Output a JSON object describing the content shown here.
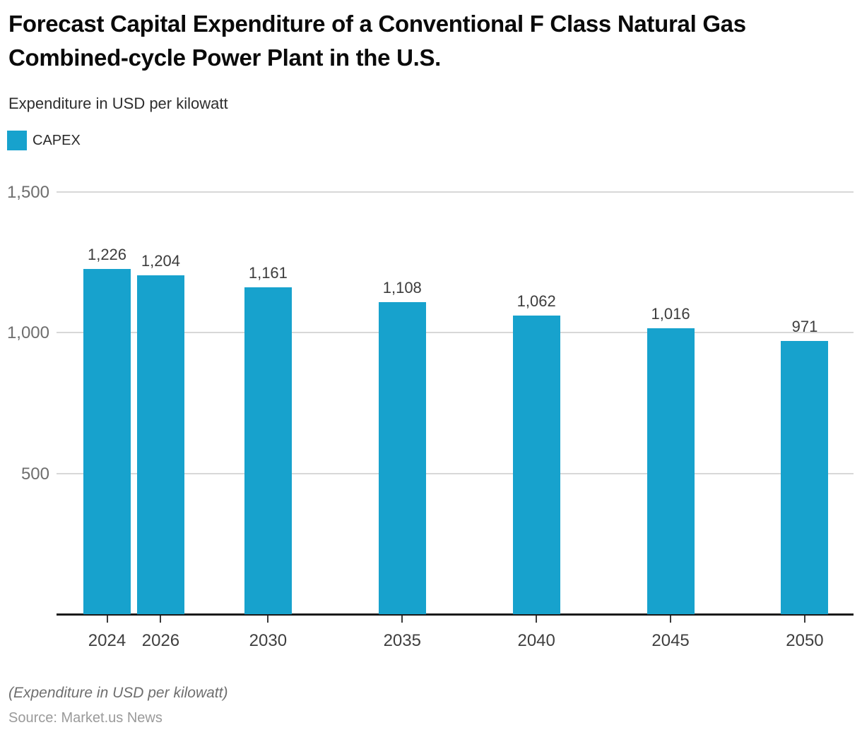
{
  "header": {
    "title": "Forecast Capital Expenditure of a Conventional F Class Natural Gas Combined-cycle Power Plant in the U.S.",
    "subtitle": "Expenditure in USD per kilowatt"
  },
  "legend": {
    "items": [
      {
        "label": "CAPEX",
        "color": "#17a2cd"
      }
    ]
  },
  "chart_data": {
    "type": "bar",
    "title": "Forecast Capital Expenditure of a Conventional F Class Natural Gas Combined-cycle Power Plant in the U.S.",
    "subtitle": "Expenditure in USD per kilowatt",
    "series_name": "CAPEX",
    "categories": [
      "2024",
      "2026",
      "2030",
      "2035",
      "2040",
      "2045",
      "2050"
    ],
    "values": [
      1226,
      1204,
      1161,
      1108,
      1062,
      1016,
      971
    ],
    "value_labels": [
      "1,226",
      "1,204",
      "1,161",
      "1,108",
      "1,062",
      "1,016",
      "971"
    ],
    "xlabel": "",
    "ylabel": "Expenditure in USD per kilowatt",
    "ylim": [
      0,
      1500
    ],
    "y_ticks": [
      500,
      1000,
      1500
    ],
    "y_tick_labels": [
      "500",
      "1,000",
      "1,500"
    ],
    "x_scale": "linear-years",
    "grid": "horizontal",
    "legend_position": "top-left",
    "bar_color": "#17a2cd",
    "gridline_color": "#d8d8d8"
  },
  "footer": {
    "note": "(Expenditure in USD per kilowatt)",
    "source": "Source: Market.us News"
  }
}
